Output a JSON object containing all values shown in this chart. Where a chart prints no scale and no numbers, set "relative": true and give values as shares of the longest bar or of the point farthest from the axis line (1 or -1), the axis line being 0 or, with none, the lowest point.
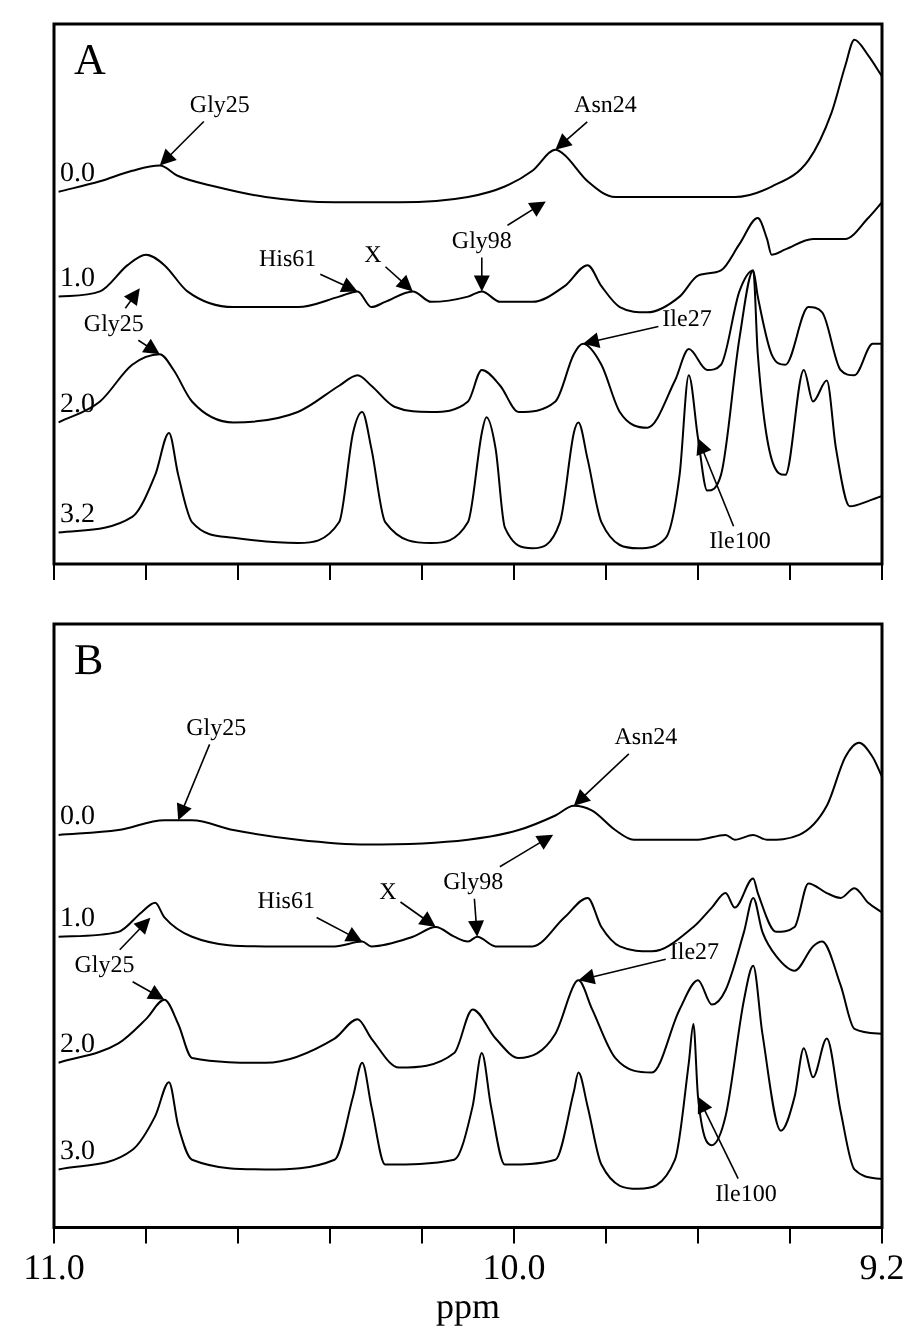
{
  "chart_data": [
    {
      "type": "line",
      "title": "A",
      "xlim": [
        11.0,
        9.2
      ],
      "xticks": [
        {
          "value": 11.0,
          "label": null
        },
        {
          "value": 10.8,
          "label": null
        },
        {
          "value": 10.6,
          "label": null
        },
        {
          "value": 10.4,
          "label": null
        },
        {
          "value": 10.2,
          "label": null
        },
        {
          "value": 10.0,
          "label": null
        },
        {
          "value": 9.8,
          "label": null
        },
        {
          "value": 9.6,
          "label": null
        },
        {
          "value": 9.4,
          "label": null
        },
        {
          "value": 9.2,
          "label": null
        }
      ],
      "relative": true,
      "tick_labels": false,
      "legend": "left",
      "marker": "none",
      "line_style": "solid",
      "series": [
        {
          "name": "0.0",
          "color": "#000000",
          "x": [
            10.99,
            10.9,
            10.83,
            10.77,
            10.73,
            10.65,
            10.54,
            10.39,
            10.25,
            10.1,
            10.02,
            9.96,
            9.91,
            9.89,
            9.84,
            9.78,
            9.67,
            9.52,
            9.44,
            9.36,
            9.31,
            9.28,
            9.26,
            9.23,
            9.2
          ],
          "values": [
            0.71,
            0.73,
            0.75,
            0.76,
            0.74,
            0.72,
            0.7,
            0.69,
            0.69,
            0.7,
            0.72,
            0.75,
            0.79,
            0.78,
            0.73,
            0.7,
            0.7,
            0.7,
            0.72,
            0.77,
            0.86,
            0.95,
            1.0,
            0.97,
            0.93
          ]
        },
        {
          "name": "1.0",
          "color": "#000000",
          "x": [
            10.99,
            10.9,
            10.84,
            10.8,
            10.76,
            10.71,
            10.61,
            10.47,
            10.38,
            10.34,
            10.31,
            10.28,
            10.22,
            10.18,
            10.1,
            10.07,
            10.03,
            9.96,
            9.89,
            9.84,
            9.81,
            9.77,
            9.71,
            9.64,
            9.6,
            9.55,
            9.51,
            9.47,
            9.45,
            9.44,
            9.41,
            9.35,
            9.28,
            9.23,
            9.2
          ],
          "values": [
            0.51,
            0.52,
            0.57,
            0.59,
            0.57,
            0.52,
            0.49,
            0.49,
            0.51,
            0.52,
            0.49,
            0.5,
            0.52,
            0.5,
            0.51,
            0.52,
            0.5,
            0.5,
            0.53,
            0.57,
            0.53,
            0.49,
            0.48,
            0.51,
            0.55,
            0.56,
            0.61,
            0.66,
            0.62,
            0.59,
            0.6,
            0.62,
            0.62,
            0.66,
            0.69
          ]
        },
        {
          "name": "2.0",
          "color": "#000000",
          "x": [
            10.99,
            10.9,
            10.83,
            10.77,
            10.74,
            10.7,
            10.61,
            10.47,
            10.38,
            10.34,
            10.31,
            10.26,
            10.18,
            10.1,
            10.07,
            10.03,
            9.99,
            9.91,
            9.87,
            9.85,
            9.81,
            9.77,
            9.71,
            9.65,
            9.62,
            9.58,
            9.55,
            9.51,
            9.48,
            9.47,
            9.44,
            9.41,
            9.36,
            9.33,
            9.29,
            9.26,
            9.22,
            9.2
          ],
          "values": [
            0.27,
            0.31,
            0.38,
            0.4,
            0.37,
            0.31,
            0.27,
            0.29,
            0.34,
            0.36,
            0.34,
            0.3,
            0.29,
            0.31,
            0.37,
            0.34,
            0.29,
            0.31,
            0.4,
            0.42,
            0.38,
            0.29,
            0.26,
            0.35,
            0.41,
            0.37,
            0.38,
            0.52,
            0.56,
            0.51,
            0.4,
            0.38,
            0.49,
            0.48,
            0.37,
            0.36,
            0.42,
            0.42
          ]
        },
        {
          "name": "3.2",
          "color": "#000000",
          "x": [
            10.99,
            10.83,
            10.78,
            10.75,
            10.73,
            10.7,
            10.61,
            10.47,
            10.38,
            10.35,
            10.33,
            10.31,
            10.28,
            10.18,
            10.1,
            10.07,
            10.06,
            10.04,
            10.02,
            9.96,
            9.9,
            9.87,
            9.86,
            9.84,
            9.81,
            9.73,
            9.67,
            9.64,
            9.62,
            9.6,
            9.58,
            9.55,
            9.51,
            9.48,
            9.47,
            9.44,
            9.41,
            9.37,
            9.35,
            9.32,
            9.3,
            9.27,
            9.23,
            9.2
          ],
          "values": [
            0.06,
            0.09,
            0.17,
            0.25,
            0.17,
            0.08,
            0.05,
            0.04,
            0.08,
            0.25,
            0.29,
            0.22,
            0.08,
            0.04,
            0.08,
            0.25,
            0.28,
            0.22,
            0.07,
            0.03,
            0.08,
            0.25,
            0.27,
            0.2,
            0.08,
            0.03,
            0.05,
            0.17,
            0.36,
            0.24,
            0.14,
            0.17,
            0.43,
            0.56,
            0.4,
            0.2,
            0.17,
            0.37,
            0.31,
            0.35,
            0.22,
            0.11,
            0.12,
            0.13
          ]
        }
      ],
      "annotations": [
        {
          "text": "Gly25",
          "x": 10.77,
          "y": 0.76
        },
        {
          "text": "Asn24",
          "x": 9.91,
          "y": 0.79
        },
        {
          "text": "Gly98",
          "x": 10.07,
          "y": 0.52
        },
        {
          "text": "His61",
          "x": 10.34,
          "y": 0.52
        },
        {
          "text": "X",
          "x": 10.22,
          "y": 0.52
        },
        {
          "text": "Gly25",
          "x": 10.77,
          "y": 0.4
        },
        {
          "text": "Ile27",
          "x": 9.85,
          "y": 0.42
        },
        {
          "text": "Ile100",
          "x": 9.6,
          "y": 0.24
        }
      ]
    },
    {
      "type": "line",
      "title": "B",
      "xlabel": "ppm",
      "xlim": [
        11.0,
        9.2
      ],
      "xticks": [
        {
          "value": 11.0,
          "label": "11.0"
        },
        {
          "value": 10.8,
          "label": null
        },
        {
          "value": 10.6,
          "label": null
        },
        {
          "value": 10.4,
          "label": null
        },
        {
          "value": 10.2,
          "label": null
        },
        {
          "value": 10.0,
          "label": "10.0"
        },
        {
          "value": 9.8,
          "label": null
        },
        {
          "value": 9.6,
          "label": null
        },
        {
          "value": 9.4,
          "label": null
        },
        {
          "value": 9.2,
          "label": "9.2"
        }
      ],
      "relative": true,
      "tick_labels": "x",
      "legend": "left",
      "marker": "none",
      "line_style": "solid",
      "series": [
        {
          "name": "0.0",
          "color": "#000000",
          "x": [
            10.99,
            10.86,
            10.76,
            10.7,
            10.61,
            10.47,
            10.32,
            10.1,
            9.99,
            9.91,
            9.87,
            9.83,
            9.78,
            9.74,
            9.6,
            9.54,
            9.52,
            9.48,
            9.45,
            9.38,
            9.32,
            9.28,
            9.25,
            9.22,
            9.2
          ],
          "values": [
            0.81,
            0.82,
            0.84,
            0.84,
            0.82,
            0.8,
            0.79,
            0.8,
            0.82,
            0.85,
            0.87,
            0.86,
            0.82,
            0.8,
            0.8,
            0.81,
            0.8,
            0.81,
            0.8,
            0.81,
            0.87,
            0.97,
            1.0,
            0.97,
            0.93
          ]
        },
        {
          "name": "1.0",
          "color": "#000000",
          "x": [
            10.99,
            10.86,
            10.81,
            10.78,
            10.76,
            10.7,
            10.54,
            10.39,
            10.33,
            10.31,
            10.22,
            10.17,
            10.13,
            10.1,
            10.08,
            10.04,
            9.96,
            9.89,
            9.84,
            9.81,
            9.77,
            9.7,
            9.61,
            9.57,
            9.54,
            9.52,
            9.48,
            9.47,
            9.43,
            9.39,
            9.36,
            9.32,
            9.29,
            9.26,
            9.23,
            9.2
          ],
          "values": [
            0.6,
            0.61,
            0.65,
            0.67,
            0.64,
            0.6,
            0.58,
            0.58,
            0.59,
            0.58,
            0.6,
            0.62,
            0.6,
            0.59,
            0.6,
            0.58,
            0.58,
            0.64,
            0.68,
            0.62,
            0.58,
            0.57,
            0.62,
            0.66,
            0.69,
            0.66,
            0.72,
            0.69,
            0.61,
            0.62,
            0.71,
            0.69,
            0.68,
            0.7,
            0.67,
            0.65
          ]
        },
        {
          "name": "2.0",
          "color": "#000000",
          "x": [
            10.99,
            10.86,
            10.8,
            10.76,
            10.73,
            10.7,
            10.54,
            10.39,
            10.34,
            10.31,
            10.25,
            10.13,
            10.09,
            10.04,
            9.99,
            9.91,
            9.87,
            9.86,
            9.83,
            9.78,
            9.7,
            9.64,
            9.6,
            9.57,
            9.54,
            9.5,
            9.48,
            9.46,
            9.43,
            9.39,
            9.35,
            9.33,
            9.29,
            9.26,
            9.2
          ],
          "values": [
            0.34,
            0.38,
            0.43,
            0.47,
            0.42,
            0.35,
            0.34,
            0.39,
            0.43,
            0.39,
            0.33,
            0.36,
            0.45,
            0.39,
            0.35,
            0.4,
            0.5,
            0.51,
            0.45,
            0.35,
            0.32,
            0.45,
            0.51,
            0.46,
            0.49,
            0.61,
            0.68,
            0.61,
            0.56,
            0.53,
            0.58,
            0.59,
            0.5,
            0.41,
            0.4
          ]
        },
        {
          "name": "3.0",
          "color": "#000000",
          "x": [
            10.99,
            10.83,
            10.78,
            10.75,
            10.73,
            10.7,
            10.54,
            10.39,
            10.35,
            10.33,
            10.31,
            10.28,
            10.13,
            10.09,
            10.07,
            10.05,
            10.02,
            9.91,
            9.87,
            9.86,
            9.84,
            9.81,
            9.73,
            9.65,
            9.62,
            9.61,
            9.6,
            9.57,
            9.54,
            9.5,
            9.48,
            9.46,
            9.42,
            9.39,
            9.37,
            9.35,
            9.32,
            9.29,
            9.26,
            9.2
          ],
          "values": [
            0.12,
            0.16,
            0.23,
            0.3,
            0.21,
            0.14,
            0.12,
            0.14,
            0.27,
            0.34,
            0.25,
            0.13,
            0.14,
            0.25,
            0.36,
            0.25,
            0.13,
            0.14,
            0.28,
            0.32,
            0.25,
            0.13,
            0.08,
            0.14,
            0.34,
            0.42,
            0.27,
            0.17,
            0.23,
            0.47,
            0.54,
            0.4,
            0.2,
            0.27,
            0.37,
            0.31,
            0.39,
            0.24,
            0.12,
            0.1
          ]
        }
      ],
      "annotations": [
        {
          "text": "Gly25",
          "x": 10.73,
          "y": 0.84
        },
        {
          "text": "Asn24",
          "x": 9.87,
          "y": 0.87
        },
        {
          "text": "Gly98",
          "x": 10.08,
          "y": 0.6
        },
        {
          "text": "His61",
          "x": 10.33,
          "y": 0.59
        },
        {
          "text": "X",
          "x": 10.17,
          "y": 0.62
        },
        {
          "text": "Gly25",
          "x": 10.76,
          "y": 0.47
        },
        {
          "text": "Ile27",
          "x": 9.86,
          "y": 0.51
        },
        {
          "text": "Ile100",
          "x": 9.6,
          "y": 0.27
        }
      ]
    }
  ]
}
